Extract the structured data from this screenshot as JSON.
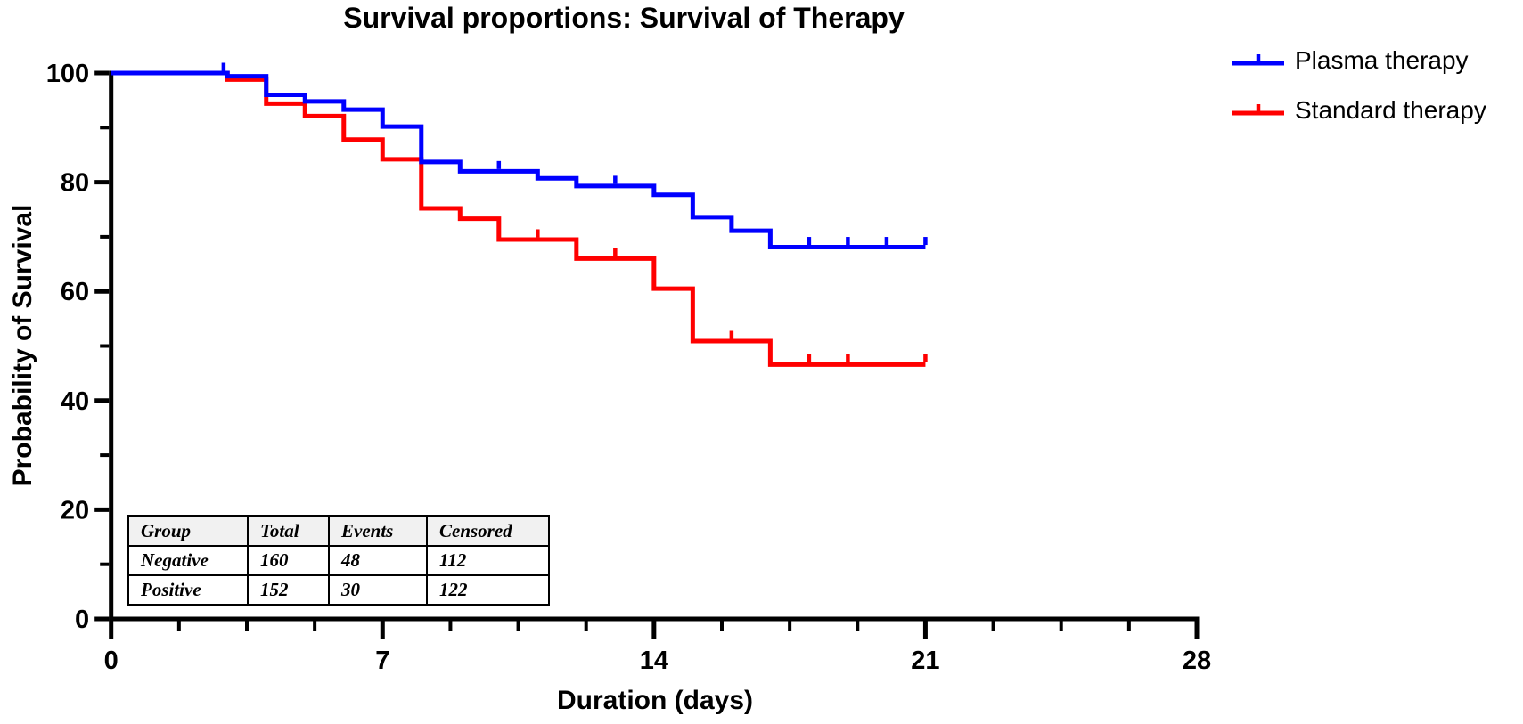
{
  "chart_data": {
    "type": "line",
    "subtype": "kaplan-meier-step-survival",
    "title": "Survival proportions: Survival of Therapy",
    "xlabel": "Duration (days)",
    "ylabel": "Probability of Survival",
    "xlim": [
      0,
      28
    ],
    "ylim": [
      0,
      100
    ],
    "x_major_ticks": [
      0,
      7,
      14,
      21,
      28
    ],
    "x_minor_per_major": 4,
    "y_major_ticks": [
      0,
      20,
      40,
      60,
      80,
      100
    ],
    "y_minor_per_major": 2,
    "grid": false,
    "axis_color": "#000000",
    "background": "#ffffff",
    "legend_position": "top-right-outside",
    "series": [
      {
        "name": "Plasma therapy",
        "color": "#0000ff",
        "step": "post",
        "end_x": 21,
        "points": [
          [
            0,
            100
          ],
          [
            3,
            99.4
          ],
          [
            4,
            96.0
          ],
          [
            5,
            94.8
          ],
          [
            6,
            93.3
          ],
          [
            7,
            90.2
          ],
          [
            8,
            83.7
          ],
          [
            9,
            82.0
          ],
          [
            11,
            80.7
          ],
          [
            12,
            79.3
          ],
          [
            14,
            77.7
          ],
          [
            15,
            73.6
          ],
          [
            16,
            71.1
          ],
          [
            17,
            68.1
          ]
        ],
        "censor_marks": [
          [
            2.9,
            100
          ],
          [
            10,
            82.0
          ],
          [
            13,
            79.3
          ],
          [
            18,
            68.1
          ],
          [
            19,
            68.1
          ],
          [
            20,
            68.1
          ],
          [
            21,
            68.1
          ]
        ]
      },
      {
        "name": "Standard therapy",
        "color": "#ff0000",
        "step": "post",
        "end_x": 21,
        "points": [
          [
            0,
            100
          ],
          [
            3,
            98.8
          ],
          [
            4,
            94.4
          ],
          [
            5,
            92.1
          ],
          [
            6,
            87.8
          ],
          [
            7,
            84.2
          ],
          [
            8,
            75.2
          ],
          [
            9,
            73.3
          ],
          [
            10,
            69.5
          ],
          [
            12,
            66.0
          ],
          [
            14,
            60.5
          ],
          [
            15,
            50.9
          ],
          [
            17,
            46.6
          ]
        ],
        "censor_marks": [
          [
            11,
            69.5
          ],
          [
            13,
            66.0
          ],
          [
            16,
            50.9
          ],
          [
            18,
            46.6
          ],
          [
            19,
            46.6
          ],
          [
            21,
            46.6
          ]
        ]
      }
    ],
    "inset_table": {
      "headers": [
        "Group",
        "Total",
        "Events",
        "Censored"
      ],
      "rows": [
        {
          "group": "Negative",
          "total": "160",
          "events": "48",
          "censored": "112"
        },
        {
          "group": "Positive",
          "total": "152",
          "events": "30",
          "censored": "122"
        }
      ]
    }
  }
}
